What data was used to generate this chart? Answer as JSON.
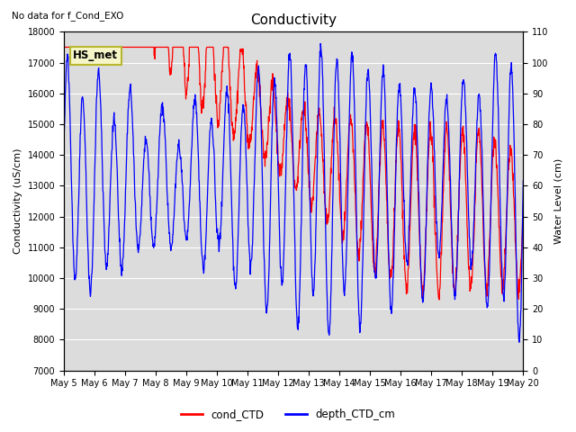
{
  "title": "Conductivity",
  "note": "No data for f_Cond_EXO",
  "ylabel_left": "Conductivity (uS/cm)",
  "ylabel_right": "Water Level (cm)",
  "ylim_left": [
    7000,
    18000
  ],
  "ylim_right": [
    0,
    110
  ],
  "yticks_left": [
    7000,
    8000,
    9000,
    10000,
    11000,
    12000,
    13000,
    14000,
    15000,
    16000,
    17000,
    18000
  ],
  "yticks_right": [
    0,
    10,
    20,
    30,
    40,
    50,
    60,
    70,
    80,
    90,
    100,
    110
  ],
  "xtick_labels": [
    "May 5",
    "May 6",
    "May 7",
    "May 8",
    "May 9",
    "May 10",
    "May 11",
    "May 12",
    "May 13",
    "May 14",
    "May 15",
    "May 16",
    "May 17",
    "May 18",
    "May 19",
    "May 20"
  ],
  "legend_labels": [
    "cond_CTD",
    "depth_CTD_cm"
  ],
  "line_colors": [
    "red",
    "blue"
  ],
  "annotation_box": "HS_met",
  "annotation_box_color": "#f5f5c8",
  "annotation_box_edge": "#b8b830",
  "plot_bg_color": "#dcdcdc",
  "fig_bg_color": "#ffffff",
  "grid_color": "#ffffff",
  "title_fontsize": 11,
  "label_fontsize": 8,
  "tick_fontsize": 7,
  "line_width": 0.9
}
